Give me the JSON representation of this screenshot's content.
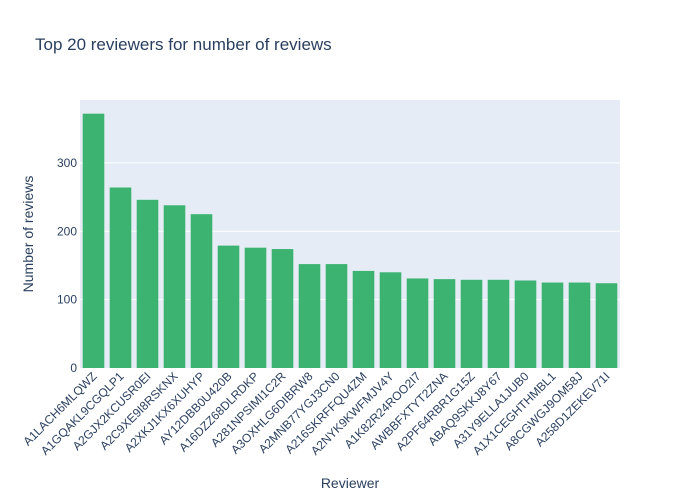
{
  "chart_data": {
    "type": "bar",
    "title": "Top 20 reviewers for number of reviews",
    "xlabel": "Reviewer",
    "ylabel": "Number of reviews",
    "categories": [
      "A1LACH6MLQWZ",
      "A1GQAKL9CGQLP1",
      "A2GJX2KCUSR0EI",
      "A2C9XE9I8RSKNX",
      "A2XKJ1KX6XUHYP",
      "AY12DBB0U420B",
      "A16DZZ68DLRDKP",
      "A281NPSIMI1C2R",
      "A3OXHLG6DIBRW8",
      "A2MNB77YGJ3CN0",
      "A216SKRFFQU4ZM",
      "A2NYK9KWFMJV4Y",
      "A1K82R24ROO2I7",
      "AWBBFXTYT2ZNA",
      "A2PF64RBR1G15Z",
      "ABAQ9SKKJ8Y67",
      "A31Y9ELLA1JUB0",
      "A1X1CEGHTHMBL1",
      "A8CGWGJ9OM58J",
      "A258D1ZEKEV71I"
    ],
    "values": [
      372,
      264,
      246,
      238,
      225,
      179,
      176,
      174,
      152,
      152,
      142,
      140,
      131,
      130,
      129,
      129,
      128,
      125,
      125,
      124
    ],
    "ylim": [
      0,
      392
    ],
    "yticks": [
      0,
      100,
      200,
      300
    ],
    "grid": true,
    "legend": "none",
    "colors": {
      "bar": "#3cb371",
      "plot_bg": "#e5ecf6",
      "grid": "#ffffff",
      "text": "#2a3f5f"
    }
  }
}
